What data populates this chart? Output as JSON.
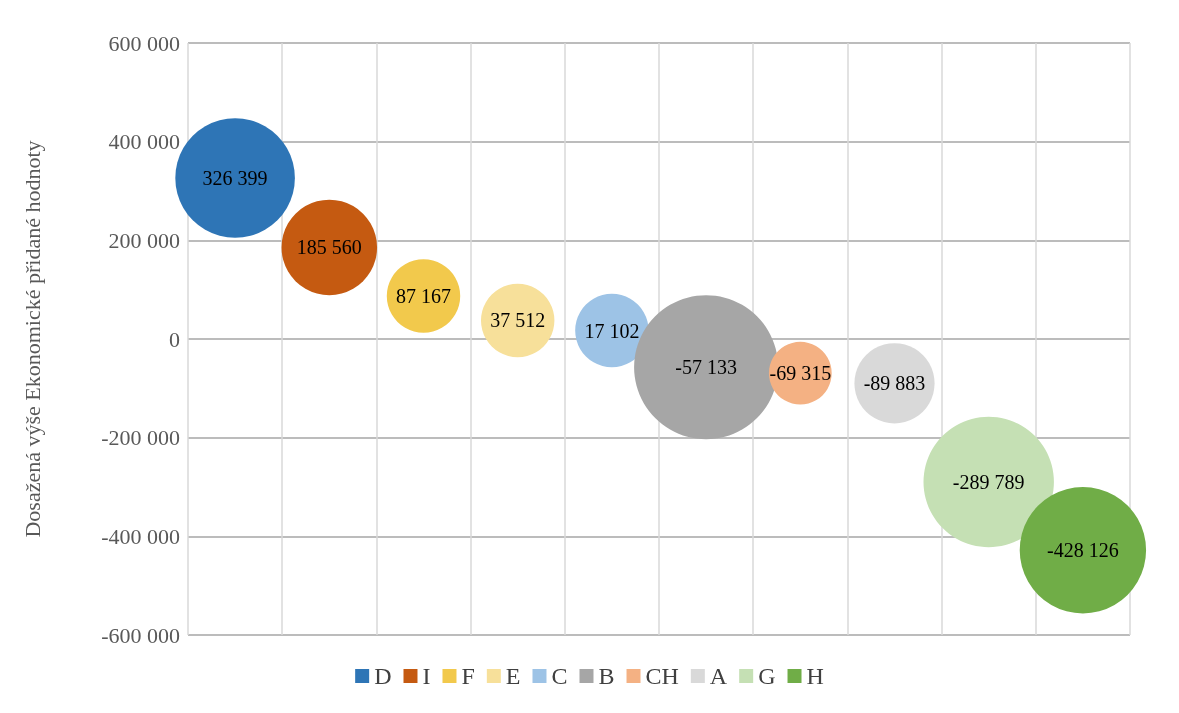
{
  "chart_data": {
    "type": "bubble",
    "ylabel": "Dosažená výše Ekonomické přidané hodnoty",
    "categories": [
      null,
      null,
      null,
      null,
      null,
      null,
      null,
      null,
      null,
      null
    ],
    "ylim": [
      -600000,
      600000
    ],
    "yticks": [
      {
        "value": -600000,
        "label": "-600 000"
      },
      {
        "value": -400000,
        "label": "-400 000"
      },
      {
        "value": -200000,
        "label": "-200 000"
      },
      {
        "value": 0,
        "label": "0"
      },
      {
        "value": 200000,
        "label": "200 000"
      },
      {
        "value": 400000,
        "label": "400 000"
      },
      {
        "value": 600000,
        "label": "600 000"
      }
    ],
    "grid": true,
    "legend": "bottom",
    "data_labels": true,
    "series": [
      {
        "name": "D",
        "color": "#2e75b6",
        "values": [
          326399,
          null,
          null,
          null,
          null,
          null,
          null,
          null,
          null,
          null
        ],
        "sizes": [
          0.69,
          null,
          null,
          null,
          null,
          null,
          null,
          null,
          null,
          null
        ]
      },
      {
        "name": "I",
        "color": "#c55a11",
        "values": [
          null,
          185560,
          null,
          null,
          null,
          null,
          null,
          null,
          null,
          null
        ],
        "sizes": [
          null,
          0.44,
          null,
          null,
          null,
          null,
          null,
          null,
          null,
          null
        ]
      },
      {
        "name": "F",
        "color": "#f2c94c",
        "values": [
          null,
          null,
          87167,
          null,
          null,
          null,
          null,
          null,
          null,
          null
        ],
        "sizes": [
          null,
          null,
          0.26,
          null,
          null,
          null,
          null,
          null,
          null,
          null
        ]
      },
      {
        "name": "E",
        "color": "#f7e09a",
        "values": [
          null,
          null,
          null,
          37512,
          null,
          null,
          null,
          null,
          null,
          null
        ],
        "sizes": [
          null,
          null,
          null,
          0.26,
          null,
          null,
          null,
          null,
          null,
          null
        ]
      },
      {
        "name": "C",
        "color": "#9dc3e6",
        "values": [
          null,
          null,
          null,
          null,
          17102,
          null,
          null,
          null,
          null,
          null
        ],
        "sizes": [
          null,
          null,
          null,
          null,
          0.26,
          null,
          null,
          null,
          null,
          null
        ]
      },
      {
        "name": "B",
        "color": "#a6a6a6",
        "values": [
          null,
          null,
          null,
          null,
          null,
          -57133,
          null,
          null,
          null,
          null
        ],
        "sizes": [
          null,
          null,
          null,
          null,
          null,
          1,
          null,
          null,
          null,
          null
        ]
      },
      {
        "name": "CH",
        "color": "#f4b183",
        "values": [
          null,
          null,
          null,
          null,
          null,
          null,
          -69315,
          null,
          null,
          null
        ],
        "sizes": [
          null,
          null,
          null,
          null,
          null,
          null,
          0.19,
          null,
          null,
          null
        ]
      },
      {
        "name": "A",
        "color": "#d9d9d9",
        "values": [
          null,
          null,
          null,
          null,
          null,
          null,
          null,
          -89883,
          null,
          null
        ],
        "sizes": [
          null,
          null,
          null,
          null,
          null,
          null,
          null,
          0.31,
          null,
          null
        ]
      },
      {
        "name": "G",
        "color": "#c5e0b4",
        "values": [
          null,
          null,
          null,
          null,
          null,
          null,
          null,
          null,
          -289789,
          null
        ],
        "sizes": [
          null,
          null,
          null,
          null,
          null,
          null,
          null,
          null,
          0.82,
          null
        ]
      },
      {
        "name": "H",
        "color": "#70ad47",
        "values": [
          null,
          null,
          null,
          null,
          null,
          null,
          null,
          null,
          null,
          -428126
        ],
        "sizes": [
          null,
          null,
          null,
          null,
          null,
          null,
          null,
          null,
          null,
          0.77
        ]
      }
    ]
  }
}
